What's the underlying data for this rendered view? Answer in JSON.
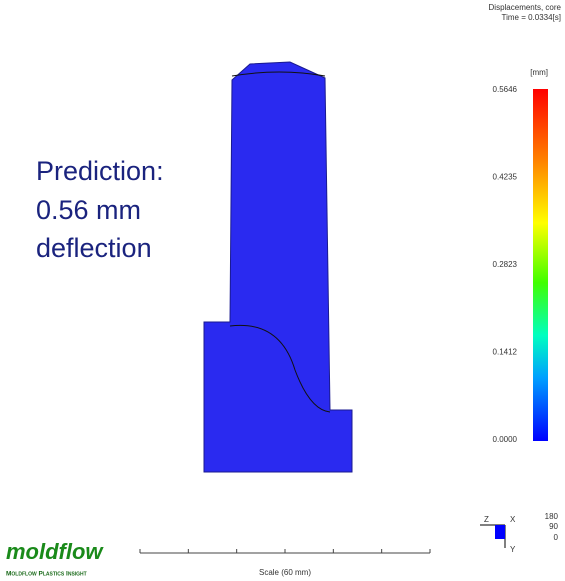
{
  "header": {
    "result": "Displacements, core",
    "time": "Time = 0.0334[s]"
  },
  "annotation": {
    "lines": [
      "Prediction:",
      "0.56 mm",
      "deflection"
    ]
  },
  "legend": {
    "unit": "[mm]",
    "labels": [
      "0.5646",
      "0.4235",
      "0.2823",
      "0.1412",
      "0.0000"
    ]
  },
  "scale": {
    "label": "Scale (60 mm)"
  },
  "triad": {
    "axes": [
      "Z",
      "X",
      "Y"
    ],
    "angles": [
      "180",
      "90",
      "0"
    ]
  },
  "logo": {
    "name": "moldflow",
    "product": "Moldflow Plastics Insight"
  }
}
